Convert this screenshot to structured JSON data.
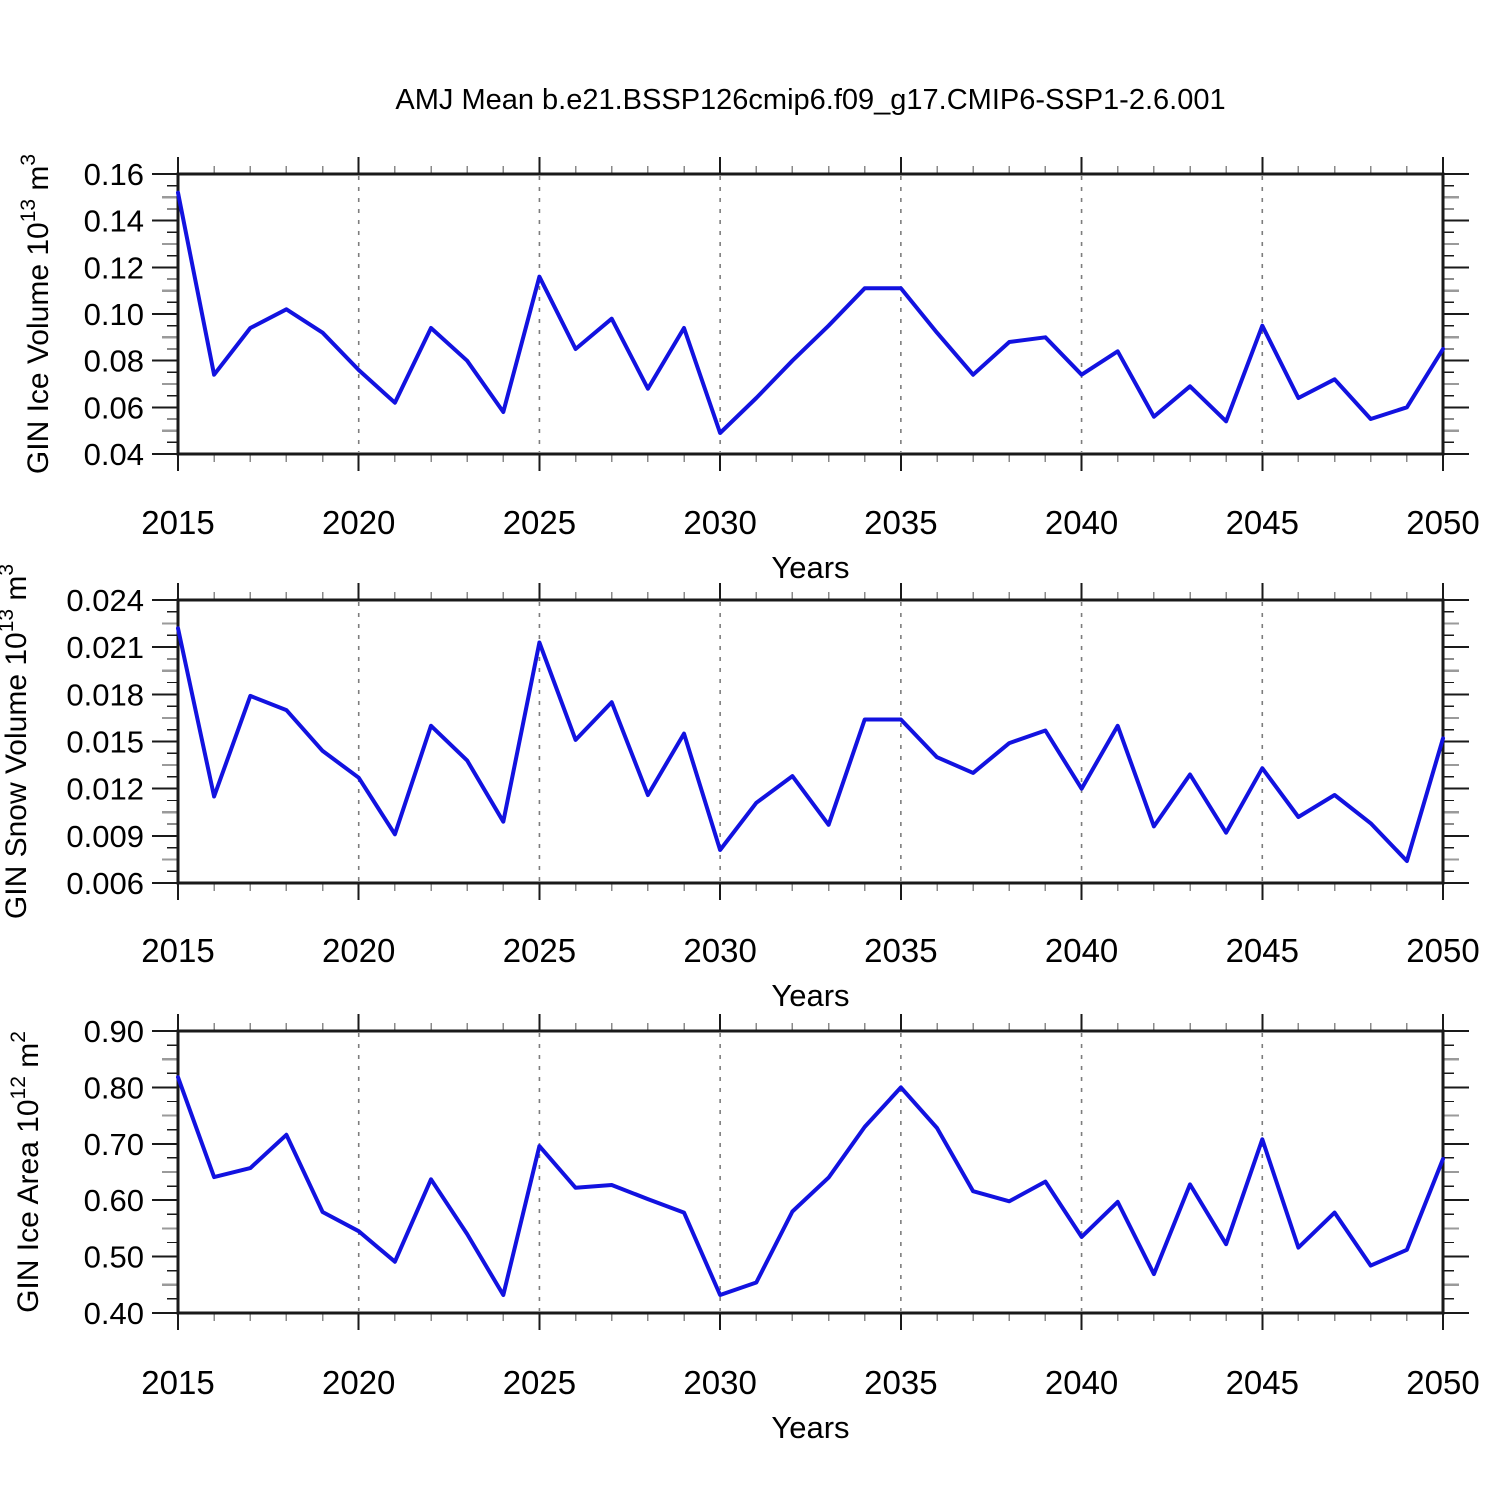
{
  "title": "AMJ Mean b.e21.BSSP126cmip6.f09_g17.CMIP6-SSP1-2.6.001",
  "style": {
    "line_color": "#1212e0",
    "axis_color": "#1a1a1a",
    "gridline_color": "#7d7d7d",
    "minor_tick_color": "#8a8a8a",
    "mid_tick_color": "#9a9a9a",
    "text_color": "#000000"
  },
  "x_axis": {
    "label": "Years",
    "years": [
      2015,
      2016,
      2017,
      2018,
      2019,
      2020,
      2021,
      2022,
      2023,
      2024,
      2025,
      2026,
      2027,
      2028,
      2029,
      2030,
      2031,
      2032,
      2033,
      2034,
      2035,
      2036,
      2037,
      2038,
      2039,
      2040,
      2041,
      2042,
      2043,
      2044,
      2045,
      2046,
      2047,
      2048,
      2049,
      2050
    ],
    "tick_years": [
      2015,
      2020,
      2025,
      2030,
      2035,
      2040,
      2045,
      2050
    ],
    "tick_labels": [
      "2015",
      "2020",
      "2025",
      "2030",
      "2035",
      "2040",
      "2045",
      "2050"
    ],
    "gridline_years": [
      2020,
      2025,
      2030,
      2035,
      2040,
      2045
    ],
    "xlim": [
      2015,
      2050
    ]
  },
  "chart_data": [
    {
      "type": "line",
      "name": "gin-ice-volume",
      "title": "",
      "ylabel": "GIN Ice Volume 10¹³ m³",
      "ylabel_segments": [
        {
          "t": "GIN Ice Volume 10"
        },
        {
          "t": "13",
          "sup": true
        },
        {
          "t": " m"
        },
        {
          "t": "3",
          "sup": true
        }
      ],
      "ylim": [
        0.04,
        0.16
      ],
      "ytick_values": [
        0.04,
        0.06,
        0.08,
        0.1,
        0.12,
        0.14,
        0.16
      ],
      "ytick_labels": [
        "0.04",
        "0.06",
        "0.08",
        "0.10",
        "0.12",
        "0.14",
        "0.16"
      ],
      "minor_ticks_per_interval": 3,
      "legend": "none",
      "grid": "vertical dashed every 5 years",
      "x": "x_axis.years",
      "values": [
        0.152,
        0.074,
        0.094,
        0.102,
        0.092,
        0.076,
        0.062,
        0.094,
        0.08,
        0.058,
        0.116,
        0.085,
        0.098,
        0.068,
        0.094,
        0.049,
        0.064,
        0.08,
        0.095,
        0.111,
        0.111,
        0.092,
        0.074,
        0.088,
        0.09,
        0.074,
        0.084,
        0.056,
        0.069,
        0.054,
        0.095,
        0.064,
        0.072,
        0.055,
        0.06,
        0.085
      ]
    },
    {
      "type": "line",
      "name": "gin-snow-volume",
      "title": "",
      "ylabel": "GIN Snow Volume 10¹³ m³",
      "ylabel_segments": [
        {
          "t": "GIN Snow Volume 10"
        },
        {
          "t": "13",
          "sup": true
        },
        {
          "t": " m"
        },
        {
          "t": "3",
          "sup": true
        }
      ],
      "ylim": [
        0.006,
        0.024
      ],
      "ytick_values": [
        0.006,
        0.009,
        0.012,
        0.015,
        0.018,
        0.021,
        0.024
      ],
      "ytick_labels": [
        "0.006",
        "0.009",
        "0.012",
        "0.015",
        "0.018",
        "0.021",
        "0.024"
      ],
      "minor_ticks_per_interval": 3,
      "legend": "none",
      "grid": "vertical dashed every 5 years",
      "x": "x_axis.years",
      "values": [
        0.0222,
        0.0115,
        0.0179,
        0.017,
        0.0144,
        0.0127,
        0.0091,
        0.016,
        0.0138,
        0.0099,
        0.0213,
        0.0151,
        0.0175,
        0.0116,
        0.0155,
        0.0081,
        0.0111,
        0.0128,
        0.0097,
        0.0164,
        0.0164,
        0.014,
        0.013,
        0.0149,
        0.0157,
        0.012,
        0.016,
        0.0096,
        0.0129,
        0.0092,
        0.0133,
        0.0102,
        0.0116,
        0.0098,
        0.0074,
        0.0152
      ]
    },
    {
      "type": "line",
      "name": "gin-ice-area",
      "title": "",
      "ylabel": "GIN Ice Area 10¹² m²",
      "ylabel_segments": [
        {
          "t": "GIN Ice Area 10"
        },
        {
          "t": "12",
          "sup": true
        },
        {
          "t": " m"
        },
        {
          "t": "2",
          "sup": true
        }
      ],
      "ylim": [
        0.4,
        0.9
      ],
      "ytick_values": [
        0.4,
        0.5,
        0.6,
        0.7,
        0.8,
        0.9
      ],
      "ytick_labels": [
        "0.40",
        "0.50",
        "0.60",
        "0.70",
        "0.80",
        "0.90"
      ],
      "minor_ticks_per_interval": 3,
      "legend": "none",
      "grid": "vertical dashed every 5 years",
      "x": "x_axis.years",
      "values": [
        0.818,
        0.641,
        0.657,
        0.716,
        0.579,
        0.545,
        0.491,
        0.637,
        0.54,
        0.432,
        0.696,
        0.622,
        0.627,
        0.602,
        0.578,
        0.432,
        0.454,
        0.58,
        0.64,
        0.73,
        0.8,
        0.728,
        0.616,
        0.598,
        0.633,
        0.535,
        0.597,
        0.469,
        0.628,
        0.522,
        0.708,
        0.516,
        0.578,
        0.484,
        0.512,
        0.673
      ]
    }
  ]
}
